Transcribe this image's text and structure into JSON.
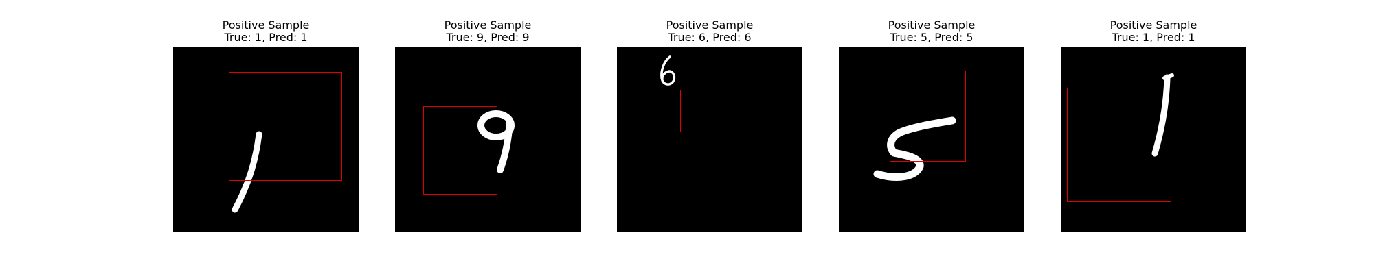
{
  "colors": {
    "background": "#ffffff",
    "image": "#000000",
    "digit": "#ffffff",
    "box": "#e00000"
  },
  "panels": [
    {
      "title": "Positive Sample",
      "subtitle": "True: 1, Pred: 1",
      "digit": "1"
    },
    {
      "title": "Positive Sample",
      "subtitle": "True: 9, Pred: 9",
      "digit": "9"
    },
    {
      "title": "Positive Sample",
      "subtitle": "True: 6, Pred: 6",
      "digit": "6"
    },
    {
      "title": "Positive Sample",
      "subtitle": "True: 5, Pred: 5",
      "digit": "5"
    },
    {
      "title": "Positive Sample",
      "subtitle": "True: 1, Pred: 1",
      "digit": "1"
    }
  ]
}
